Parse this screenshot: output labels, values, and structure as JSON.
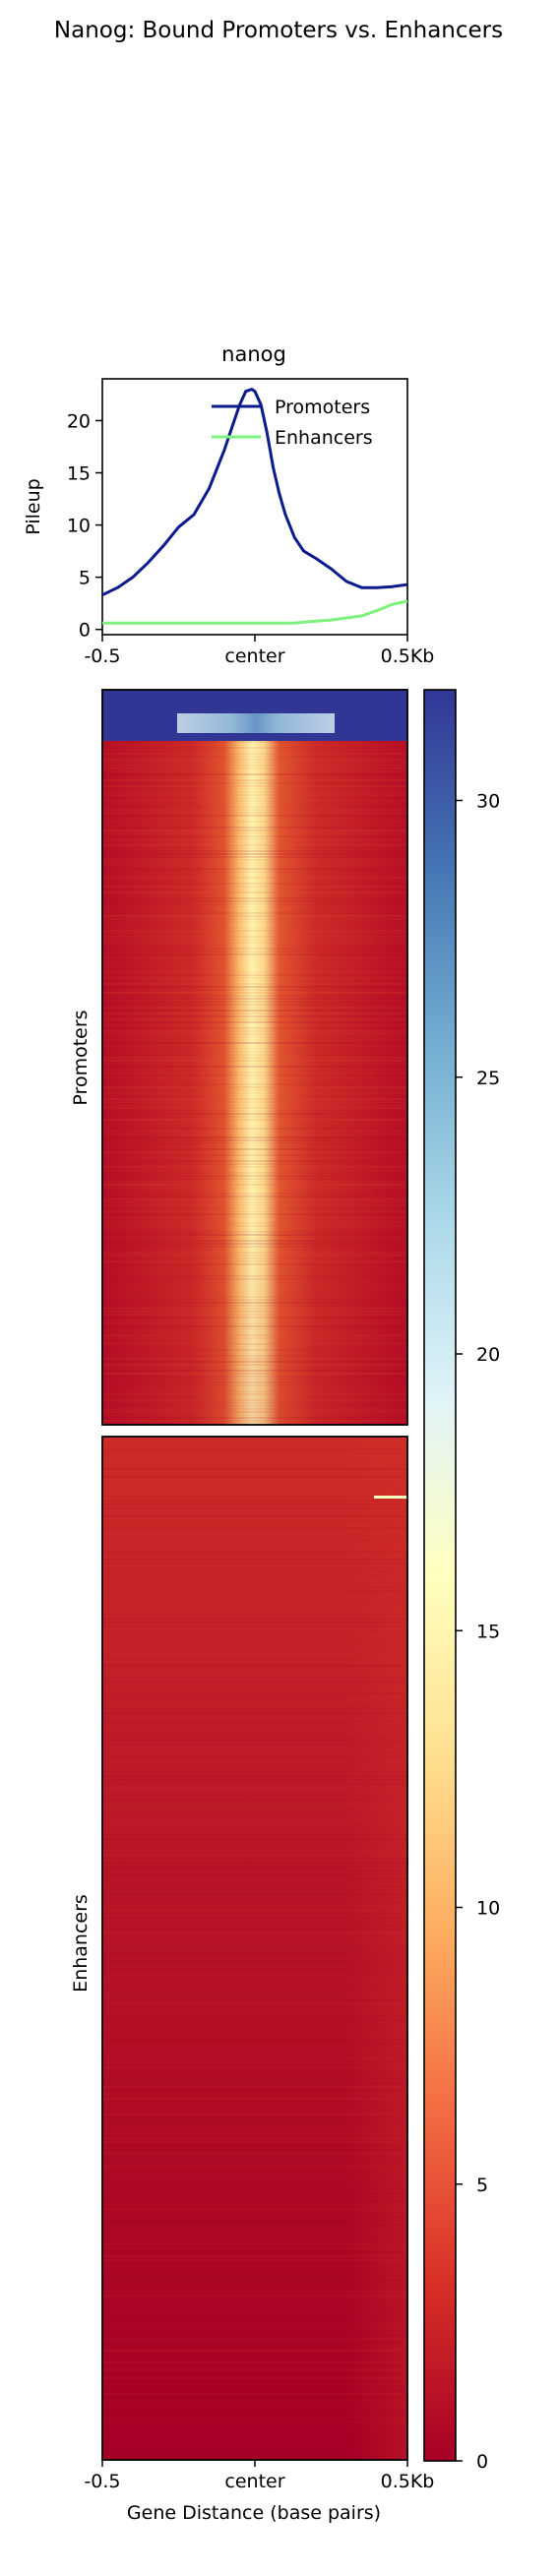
{
  "figure": {
    "title": "Nanog: Bound Promoters vs. Enhancers"
  },
  "chart_data": [
    {
      "type": "line",
      "title": "nanog",
      "ylabel": "Pileup",
      "xlabel": "",
      "x_ticklabels": [
        "-0.5",
        "center",
        "0.5Kb"
      ],
      "x": [
        -0.5,
        -0.45,
        -0.4,
        -0.35,
        -0.3,
        -0.25,
        -0.2,
        -0.15,
        -0.1,
        -0.07,
        -0.05,
        -0.03,
        -0.01,
        0.0,
        0.02,
        0.04,
        0.06,
        0.08,
        0.1,
        0.13,
        0.16,
        0.2,
        0.25,
        0.3,
        0.35,
        0.4,
        0.45,
        0.5
      ],
      "xlim": [
        -0.5,
        0.5
      ],
      "ylim": [
        -0.5,
        24
      ],
      "yticks": [
        0,
        5,
        10,
        15,
        20
      ],
      "legend_position": "top-right",
      "grid": false,
      "series": [
        {
          "name": "Promoters",
          "color": "#0b1a8c",
          "values": [
            3.3,
            4.0,
            5.0,
            6.4,
            8.0,
            9.8,
            11.0,
            13.5,
            17.2,
            19.8,
            21.5,
            22.8,
            23.0,
            22.8,
            21.5,
            18.8,
            15.5,
            13.0,
            11.0,
            8.8,
            7.5,
            6.8,
            5.8,
            4.6,
            4.0,
            4.0,
            4.1,
            4.3
          ]
        },
        {
          "name": "Enhancers",
          "color": "#7ef27e",
          "values": [
            0.6,
            0.6,
            0.6,
            0.6,
            0.6,
            0.6,
            0.6,
            0.6,
            0.6,
            0.6,
            0.6,
            0.6,
            0.6,
            0.6,
            0.6,
            0.6,
            0.6,
            0.6,
            0.6,
            0.6,
            0.7,
            0.8,
            0.9,
            1.1,
            1.3,
            1.8,
            2.4,
            2.7
          ]
        }
      ]
    },
    {
      "type": "heatmap",
      "colormap": "RdYlBu",
      "colorbar_range": [
        0,
        32
      ],
      "colorbar_ticks": [
        0,
        5,
        10,
        15,
        20,
        25,
        30
      ],
      "x_ticklabels": [
        "-0.5",
        "center",
        "0.5Kb"
      ],
      "xlabel": "Gene Distance (base pairs)",
      "groups": [
        {
          "name": "Promoters",
          "description_profile": "strong central enrichment peaking around 16-20 near top rows, saturating blue (>30) for the first rows across all bins",
          "center_value_top": 32,
          "center_value_bottom": 16,
          "flank_value": 1.5
        },
        {
          "name": "Enhancers",
          "description_profile": "low signal throughout, slight increase toward right edge",
          "center_value_top": 3,
          "center_value_bottom": 0.3,
          "flank_value": 1.0
        }
      ]
    }
  ]
}
